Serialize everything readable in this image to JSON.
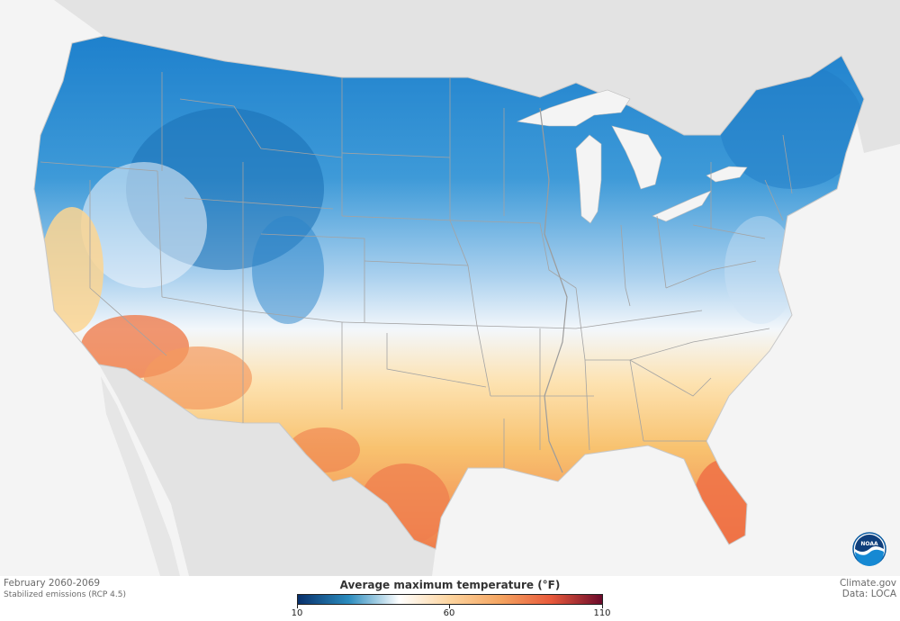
{
  "caption": {
    "period": "February 2060-2069",
    "scenario": "Stabilized emissions (RCP 4.5)"
  },
  "credits": {
    "source": "Climate.gov",
    "data": "Data: LOCA"
  },
  "logo": {
    "text": "NOAA"
  },
  "legend": {
    "title": "Average maximum temperature (°F)",
    "min": 10,
    "mid": 60,
    "max": 110,
    "tick_labels": [
      "10",
      "60",
      "110"
    ],
    "colors": [
      "#08306b",
      "#2b8cbe",
      "#ffffff",
      "#fdd49e",
      "#f4a460",
      "#e8593b",
      "#6b0a2b"
    ]
  },
  "map_colors": {
    "land_background": "#e3e3e3",
    "water": "#f4f4f4",
    "cold": "#1f78c4",
    "cool": "#6fb0e0",
    "neutral": "#f4f7fb",
    "warm": "#fbd592",
    "hot": "#f08a4f",
    "border": "#9a9a9a"
  }
}
